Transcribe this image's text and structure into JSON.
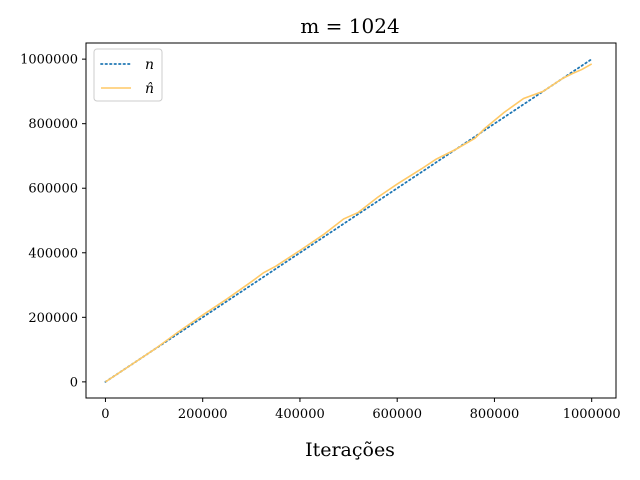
{
  "chart_data": {
    "type": "line",
    "title": "m = 1024",
    "xlabel": "Iterações",
    "ylabel": "",
    "xlim": [
      -40000,
      1050000
    ],
    "ylim": [
      -50000,
      1050000
    ],
    "xticks": [
      0,
      200000,
      400000,
      600000,
      800000,
      1000000
    ],
    "xtick_labels": [
      "0",
      "200000",
      "400000",
      "600000",
      "800000",
      "1000000"
    ],
    "yticks": [
      0,
      200000,
      400000,
      600000,
      800000,
      1000000
    ],
    "ytick_labels": [
      "0",
      "200000",
      "400000",
      "600000",
      "800000",
      "1000000"
    ],
    "grid": false,
    "legend_position": "top-left",
    "series": [
      {
        "name": "n",
        "color": "#1f77b4",
        "style": "dotted",
        "x": [
          0,
          1000000
        ],
        "y": [
          0,
          1000000
        ]
      },
      {
        "name": "n̂",
        "color": "#ffc966",
        "style": "solid",
        "x": [
          0,
          50000,
          100000,
          150000,
          200000,
          250000,
          300000,
          325000,
          350000,
          400000,
          450000,
          490000,
          520000,
          560000,
          600000,
          650000,
          680000,
          720000,
          760000,
          780000,
          820000,
          860000,
          900000,
          940000,
          960000,
          980000,
          1000000
        ],
        "y": [
          0,
          50000,
          100000,
          155000,
          207000,
          257000,
          310000,
          338000,
          358000,
          407000,
          458000,
          505000,
          525000,
          572000,
          613000,
          660000,
          690000,
          720000,
          755000,
          785000,
          835000,
          878000,
          900000,
          940000,
          955000,
          968000,
          985000
        ]
      }
    ]
  }
}
